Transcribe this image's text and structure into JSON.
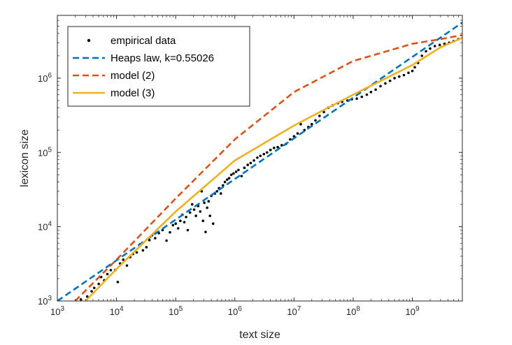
{
  "chart_data": {
    "type": "line",
    "title": "",
    "xlabel": "text size",
    "ylabel": "lexicon size",
    "x_scale": "log",
    "y_scale": "log",
    "xlim": [
      1000,
      7000000000
    ],
    "ylim": [
      1000,
      7000000
    ],
    "x_ticks": [
      {
        "value": 1000,
        "base": "10",
        "exp": "3"
      },
      {
        "value": 10000,
        "base": "10",
        "exp": "4"
      },
      {
        "value": 100000,
        "base": "10",
        "exp": "5"
      },
      {
        "value": 1000000,
        "base": "10",
        "exp": "6"
      },
      {
        "value": 10000000,
        "base": "10",
        "exp": "7"
      },
      {
        "value": 100000000,
        "base": "10",
        "exp": "8"
      },
      {
        "value": 1000000000,
        "base": "10",
        "exp": "9"
      }
    ],
    "y_ticks": [
      {
        "value": 1000,
        "base": "10",
        "exp": "3"
      },
      {
        "value": 10000,
        "base": "10",
        "exp": "4"
      },
      {
        "value": 100000,
        "base": "10",
        "exp": "5"
      },
      {
        "value": 1000000,
        "base": "10",
        "exp": "6"
      }
    ],
    "grid": false,
    "legend_position": "top-left",
    "series": [
      {
        "name": "empirical data",
        "style": "dots",
        "color": "#000000",
        "points": [
          [
            2500,
            1050
          ],
          [
            3200,
            1150
          ],
          [
            3800,
            1350
          ],
          [
            4200,
            1500
          ],
          [
            5000,
            1700
          ],
          [
            5500,
            2100
          ],
          [
            6200,
            1900
          ],
          [
            7000,
            2300
          ],
          [
            8000,
            2600
          ],
          [
            9500,
            2600
          ],
          [
            10500,
            1800
          ],
          [
            11500,
            3200
          ],
          [
            13000,
            3600
          ],
          [
            15000,
            3000
          ],
          [
            17000,
            3900
          ],
          [
            19000,
            4300
          ],
          [
            22000,
            4500
          ],
          [
            25000,
            5800
          ],
          [
            28000,
            4800
          ],
          [
            32000,
            5300
          ],
          [
            36000,
            6600
          ],
          [
            40000,
            7700
          ],
          [
            45000,
            7000
          ],
          [
            52000,
            8200
          ],
          [
            60000,
            9000
          ],
          [
            70000,
            6500
          ],
          [
            80000,
            8400
          ],
          [
            90000,
            10500
          ],
          [
            100000,
            11000
          ],
          [
            110000,
            9500
          ],
          [
            120000,
            12000
          ],
          [
            130000,
            14500
          ],
          [
            140000,
            11500
          ],
          [
            150000,
            13500
          ],
          [
            160000,
            9000
          ],
          [
            175000,
            15500
          ],
          [
            190000,
            20000
          ],
          [
            205000,
            17000
          ],
          [
            220000,
            14000
          ],
          [
            240000,
            19000
          ],
          [
            260000,
            16000
          ],
          [
            275000,
            30000
          ],
          [
            290000,
            12000
          ],
          [
            305000,
            21000
          ],
          [
            320000,
            8500
          ],
          [
            340000,
            18000
          ],
          [
            360000,
            22000
          ],
          [
            380000,
            14000
          ],
          [
            400000,
            26000
          ],
          [
            430000,
            11000
          ],
          [
            460000,
            28000
          ],
          [
            500000,
            30000
          ],
          [
            540000,
            33000
          ],
          [
            580000,
            28000
          ],
          [
            630000,
            36000
          ],
          [
            680000,
            40000
          ],
          [
            740000,
            43000
          ],
          [
            800000,
            45000
          ],
          [
            870000,
            50000
          ],
          [
            950000,
            52000
          ],
          [
            1050000,
            55000
          ],
          [
            1150000,
            58000
          ],
          [
            1300000,
            48000
          ],
          [
            1450000,
            62000
          ],
          [
            1650000,
            68000
          ],
          [
            1850000,
            72000
          ],
          [
            2100000,
            78000
          ],
          [
            2400000,
            85000
          ],
          [
            2700000,
            90000
          ],
          [
            3100000,
            95000
          ],
          [
            3500000,
            100000
          ],
          [
            4000000,
            108000
          ],
          [
            4600000,
            115000
          ],
          [
            5300000,
            118000
          ],
          [
            6200000,
            125000
          ],
          [
            7300000,
            130000
          ],
          [
            8600000,
            150000
          ],
          [
            10000000,
            165000
          ],
          [
            11500000,
            180000
          ],
          [
            13000000,
            240000
          ],
          [
            15000000,
            200000
          ],
          [
            17500000,
            220000
          ],
          [
            20000000,
            240000
          ],
          [
            23000000,
            270000
          ],
          [
            27000000,
            310000
          ],
          [
            32000000,
            350000
          ],
          [
            38000000,
            400000
          ],
          [
            45000000,
            430000
          ],
          [
            55000000,
            460000
          ],
          [
            65000000,
            480000
          ],
          [
            80000000,
            500000
          ],
          [
            95000000,
            520000
          ],
          [
            115000000,
            530000
          ],
          [
            140000000,
            560000
          ],
          [
            170000000,
            600000
          ],
          [
            200000000,
            650000
          ],
          [
            240000000,
            700000
          ],
          [
            290000000,
            780000
          ],
          [
            350000000,
            850000
          ],
          [
            420000000,
            920000
          ],
          [
            500000000,
            1000000
          ],
          [
            600000000,
            1050000
          ],
          [
            720000000,
            1100000
          ],
          [
            860000000,
            1180000
          ],
          [
            1000000000,
            1250000
          ],
          [
            1100000000,
            1400000
          ],
          [
            1250000000,
            1600000
          ],
          [
            1450000000,
            2000000
          ],
          [
            1700000000,
            2300000
          ],
          [
            2000000000,
            2500000
          ],
          [
            2400000000,
            2700000
          ],
          [
            2900000000,
            2800000
          ],
          [
            3500000000,
            2900000
          ],
          [
            4200000000,
            3000000
          ],
          [
            5000000000,
            3150000
          ],
          [
            6000000000,
            3350000
          ]
        ]
      },
      {
        "name": "Heaps law, k=0.55026",
        "style": "dashed",
        "color": "#0072BD",
        "points": [
          [
            1000,
            1000
          ],
          [
            7000000000,
            5600000
          ]
        ]
      },
      {
        "name": "model (2)",
        "style": "dashed",
        "color": "#D95319",
        "points": [
          [
            2000,
            1000
          ],
          [
            10000,
            3600
          ],
          [
            100000,
            24000
          ],
          [
            1000000,
            150000
          ],
          [
            10000000,
            650000
          ],
          [
            100000000,
            1700000
          ],
          [
            1000000000,
            2900000
          ],
          [
            3000000000,
            3350000
          ],
          [
            7000000000,
            3800000
          ]
        ]
      },
      {
        "name": "model (3)",
        "style": "solid",
        "color": "#EDB120",
        "points": [
          [
            3000,
            1000
          ],
          [
            10000,
            2700
          ],
          [
            100000,
            16000
          ],
          [
            1000000,
            78000
          ],
          [
            10000000,
            230000
          ],
          [
            100000000,
            600000
          ],
          [
            1000000000,
            1500000
          ],
          [
            3000000000,
            2600000
          ],
          [
            7000000000,
            3500000
          ]
        ]
      }
    ]
  }
}
